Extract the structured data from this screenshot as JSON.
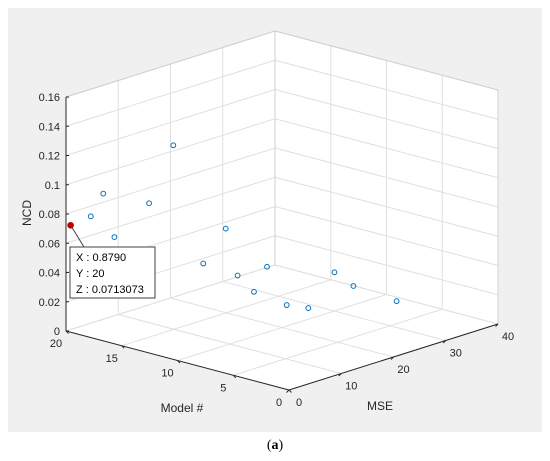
{
  "caption": {
    "open": "(",
    "letter": "a",
    "close": ")"
  },
  "chart_data": {
    "type": "scatter",
    "title": "",
    "xlabel": "MSE",
    "ylabel": "Model #",
    "zlabel": "NCD",
    "xlim": [
      0,
      40
    ],
    "ylim": [
      0,
      20
    ],
    "zlim": [
      0,
      0.16
    ],
    "x_ticks": [
      "0",
      "10",
      "20",
      "30",
      "40"
    ],
    "y_ticks": [
      "0",
      "5",
      "10",
      "15",
      "20"
    ],
    "z_ticks": [
      "0",
      "0.02",
      "0.04",
      "0.06",
      "0.08",
      "0.1",
      "0.12",
      "0.14",
      "0.16"
    ],
    "grid": true,
    "marker": "circle-open",
    "marker_color": "#0072bd",
    "points": [
      {
        "x": 0.879,
        "y": 20,
        "z": 0.0713073
      },
      {
        "x": 2.6,
        "y": 19,
        "z": 0.0775
      },
      {
        "x": 5.0,
        "y": 19,
        "z": 0.0903
      },
      {
        "x": 5.0,
        "y": 18,
        "z": 0.0626
      },
      {
        "x": 9.5,
        "y": 17,
        "z": 0.0827
      },
      {
        "x": 12.0,
        "y": 16,
        "z": 0.1215
      },
      {
        "x": 9.2,
        "y": 12,
        "z": 0.0519
      },
      {
        "x": 13.5,
        "y": 12,
        "z": 0.0709
      },
      {
        "x": 11.5,
        "y": 10,
        "z": 0.0451
      },
      {
        "x": 12.5,
        "y": 9,
        "z": 0.0349
      },
      {
        "x": 15.0,
        "y": 9,
        "z": 0.0492
      },
      {
        "x": 14.5,
        "y": 7,
        "z": 0.0276
      },
      {
        "x": 16.5,
        "y": 6,
        "z": 0.0253
      },
      {
        "x": 21.5,
        "y": 6,
        "z": 0.0441
      },
      {
        "x": 23.0,
        "y": 5,
        "z": 0.0351
      },
      {
        "x": 27.0,
        "y": 3,
        "z": 0.0242
      }
    ],
    "datatip": {
      "color": "#c00000",
      "lines": [
        "X : 0.8790",
        "Y : 20",
        "Z : 0.0713073"
      ]
    }
  }
}
